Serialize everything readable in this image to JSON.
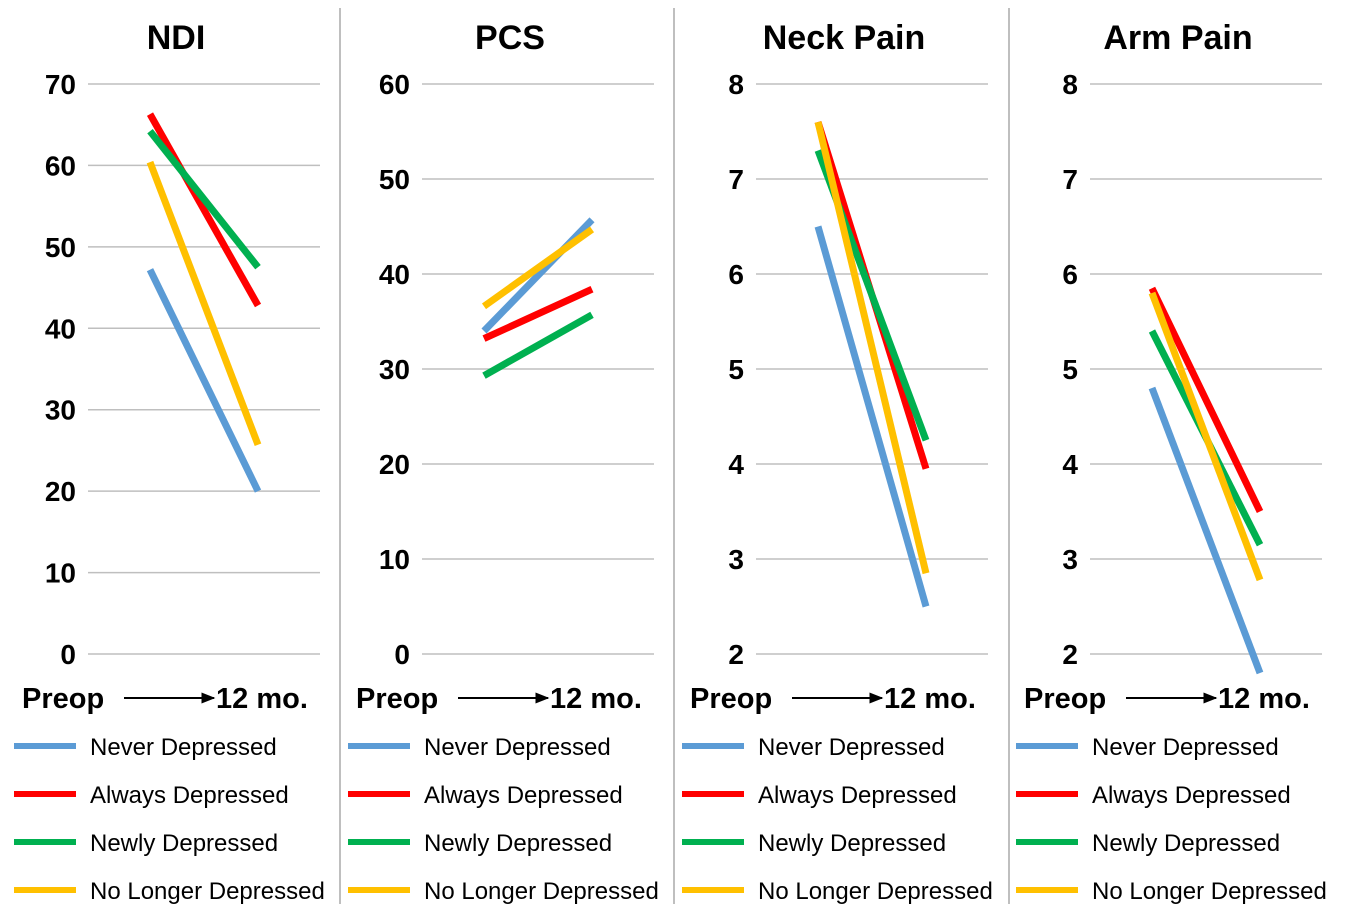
{
  "figure": {
    "panel_separator_color": "#bfbfbf",
    "gridline_color": "#bfbfbf",
    "series_colors": {
      "Never Depressed": "#5b9bd5",
      "Always Depressed": "#ff0000",
      "Newly Depressed": "#00b050",
      "No Longer Depressed": "#ffc000"
    }
  },
  "chart_data": [
    {
      "type": "line",
      "title": "NDI",
      "x_start_label": "Preop",
      "x_end_label": "12 mo.",
      "x": [
        "Preop",
        "12 mo."
      ],
      "ylim": [
        0,
        70
      ],
      "yticks": [
        0,
        10,
        20,
        30,
        40,
        50,
        60,
        70
      ],
      "grid": true,
      "legend_position": "bottom",
      "series": [
        {
          "name": "Never Depressed",
          "values": [
            47.2,
            20.0
          ]
        },
        {
          "name": "Always Depressed",
          "values": [
            66.3,
            42.8
          ]
        },
        {
          "name": "Newly Depressed",
          "values": [
            64.2,
            47.5
          ]
        },
        {
          "name": "No Longer Depressed",
          "values": [
            60.4,
            25.7
          ]
        }
      ]
    },
    {
      "type": "line",
      "title": "PCS",
      "x_start_label": "Preop",
      "x_end_label": "12 mo.",
      "x": [
        "Preop",
        "12 mo."
      ],
      "ylim": [
        0,
        60
      ],
      "yticks": [
        0,
        10,
        20,
        30,
        40,
        50,
        60
      ],
      "grid": true,
      "legend_position": "bottom",
      "series": [
        {
          "name": "Never Depressed",
          "values": [
            34.0,
            45.7
          ]
        },
        {
          "name": "Always Depressed",
          "values": [
            33.2,
            38.4
          ]
        },
        {
          "name": "Newly Depressed",
          "values": [
            29.3,
            35.7
          ]
        },
        {
          "name": "No Longer Depressed",
          "values": [
            36.6,
            44.7
          ]
        }
      ]
    },
    {
      "type": "line",
      "title": "Neck Pain",
      "x_start_label": "Preop",
      "x_end_label": "12 mo.",
      "x": [
        "Preop",
        "12 mo."
      ],
      "ylim": [
        2,
        8
      ],
      "yticks": [
        2,
        3,
        4,
        5,
        6,
        7,
        8
      ],
      "grid": true,
      "legend_position": "bottom",
      "series": [
        {
          "name": "Never Depressed",
          "values": [
            6.5,
            2.5
          ]
        },
        {
          "name": "Always Depressed",
          "values": [
            7.6,
            3.95
          ]
        },
        {
          "name": "Newly Depressed",
          "values": [
            7.3,
            4.25
          ]
        },
        {
          "name": "No Longer Depressed",
          "values": [
            7.6,
            2.85
          ]
        }
      ]
    },
    {
      "type": "line",
      "title": "Arm Pain",
      "x_start_label": "Preop",
      "x_end_label": "12 mo.",
      "x": [
        "Preop",
        "12 mo."
      ],
      "ylim": [
        2,
        8
      ],
      "yticks": [
        2,
        3,
        4,
        5,
        6,
        7,
        8
      ],
      "grid": true,
      "legend_position": "bottom",
      "series": [
        {
          "name": "Never Depressed",
          "values": [
            4.8,
            1.8
          ]
        },
        {
          "name": "Always Depressed",
          "values": [
            5.85,
            3.5
          ]
        },
        {
          "name": "Newly Depressed",
          "values": [
            5.4,
            3.15
          ]
        },
        {
          "name": "No Longer Depressed",
          "values": [
            5.8,
            2.78
          ]
        }
      ]
    }
  ]
}
